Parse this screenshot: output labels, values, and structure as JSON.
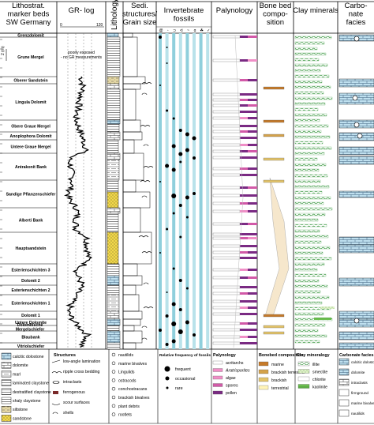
{
  "headers": {
    "col1": [
      "Lithostrat.",
      "marker beds",
      "SW Germany"
    ],
    "col2": [
      "GR- log"
    ],
    "col3": [
      "Lithology"
    ],
    "col4": [
      "Sedi.",
      "structures/",
      "Grain size"
    ],
    "col5": [
      "Invertebrate",
      "fossils"
    ],
    "col6": [
      "Palynology"
    ],
    "col7": [
      "Bone bed",
      "compo-",
      "sition"
    ],
    "col8": [
      "Clay minerals"
    ],
    "col9": [
      "Carbo-",
      "nate",
      "facies"
    ]
  },
  "gr_scale": {
    "min": "0",
    "max": "120"
  },
  "depth_scale": {
    "top": "0",
    "bottom": "2 (m)"
  },
  "annotation": [
    "poorly exposed",
    "- no GR measurements"
  ],
  "units": [
    "Grenzdolomit",
    "Grune Mergel",
    "Oberer Sandstein",
    "Lingula Dolomit",
    "Obere Graue Mergel",
    "Anoplophora Dolomit",
    "Untere Graue Mergel",
    "Antrakonit Bank",
    "Sandige Pflanzenschiefer",
    "Alberti Bank",
    "Hauptsandstein",
    "Esterienschichten 3",
    "Dolomit 2",
    "Esterienschichten 2",
    "Esterienschichten 1",
    "Dolomit 1",
    "Untere Dolomite",
    "Dolomitische Mergelschiefer",
    "Blaubank",
    "Vitriolschiefer"
  ],
  "legend": {
    "lithology": [
      "calcitic dolostone",
      "dolomite",
      "marl",
      "laminated claystone",
      "destratified claystone",
      "siltstone",
      "sandstone",
      "shaly claystone"
    ],
    "structures_title": "Structures",
    "structures": [
      "low-angle lamination",
      "ripple cross bedding",
      "intraclasts",
      "ferrogenous",
      "scour surfaces",
      "shells"
    ],
    "fossils_list": [
      "nautilids",
      "marine bivalves",
      "Lingulids",
      "ostracods",
      "conchostracans",
      "brackish bivalves",
      "plant debris",
      "rootlets"
    ],
    "frequency_title": "Relative frequency of fossils",
    "frequency": [
      "frequent",
      "occasional",
      "rare"
    ],
    "palynology_title": "Palynology",
    "palynology": [
      "acritarchs",
      "Aratrisporites",
      "algae",
      "spores",
      "pollen"
    ],
    "bonebed_title": "Bonebed composition",
    "bonebed": [
      "marine",
      "brackish terrestrial",
      "brackish",
      "terrestrial"
    ],
    "clay_title": "Clay mineralogy",
    "clay": [
      "illite",
      "smectite",
      "chlorite",
      "kaolinite"
    ],
    "carbonate_title": "Carbonate facies",
    "carbonate": [
      "calcitic dolostone",
      "dolomite",
      "intraclasts",
      "firmground",
      "marine bivalves",
      "nautilids"
    ]
  },
  "colors": {
    "dolomite": "#bfe0ef",
    "sandstone": "#f2d84a",
    "siltstone": "#e4d7a4",
    "fossil_band": "#8fcfdc",
    "pollen": "#7a2a83",
    "spores": "#d25aa8",
    "algae": "#f08fc7",
    "bonebed_fill": "#f6e7cc",
    "bonebed_marine": "#c57a29",
    "bonebed_brackish": "#e4c46a",
    "clay_illite": "#3f9a45",
    "clay_smectite": "#9bd07a"
  }
}
